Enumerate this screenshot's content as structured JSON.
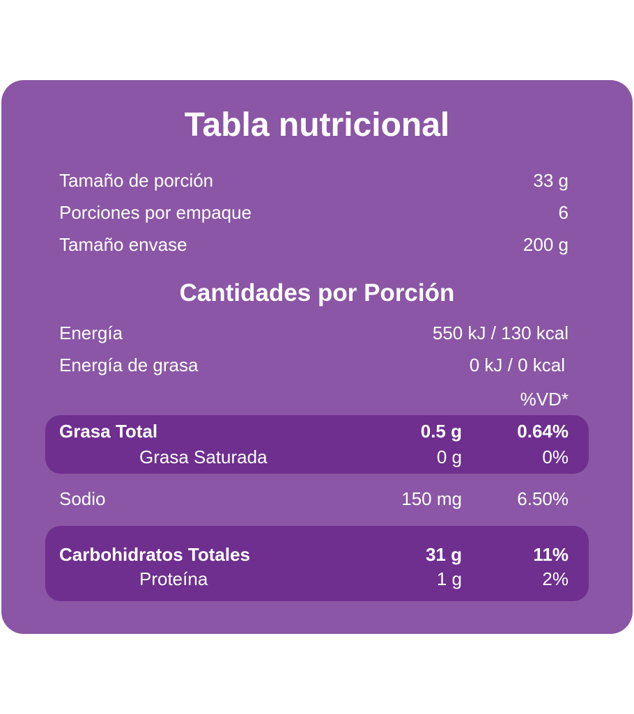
{
  "title": "Tabla nutricional",
  "serving": [
    {
      "label": "Tamaño de porción",
      "value": "33 g"
    },
    {
      "label": "Porciones por empaque",
      "value": "6"
    },
    {
      "label": "Tamaño envase",
      "value": "200 g"
    }
  ],
  "subtitle": "Cantidades por Porción",
  "energy": [
    {
      "label": "Energía",
      "value": "550 kJ / 130 kcal"
    },
    {
      "label": "Energía de grasa",
      "value": "0 kJ / 0 kcal"
    }
  ],
  "dv_header": "%VD*",
  "fat": [
    {
      "name": "Grasa Total",
      "amount": "0.5 g",
      "dv": "0.64%"
    },
    {
      "name": "Grasa Saturada",
      "amount": "0 g",
      "dv": "0%"
    }
  ],
  "sodium": {
    "name": "Sodio",
    "amount": "150 mg",
    "dv": "6.50%"
  },
  "carbs": [
    {
      "name": "Carbohidratos Totales",
      "amount": "31 g",
      "dv": "11%"
    },
    {
      "name": "Proteína",
      "amount": "1 g",
      "dv": "2%"
    }
  ]
}
